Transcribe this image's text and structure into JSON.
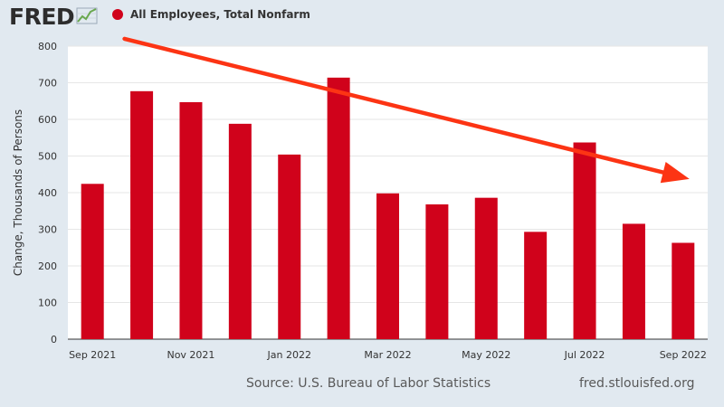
{
  "header": {
    "logo_text": "FRED",
    "legend_label": "All Employees, Total Nonfarm"
  },
  "colors": {
    "bar": "#d0021b",
    "arrow": "#fc3414",
    "plot_bg": "#ffffff",
    "page_bg": "#e1e9f0"
  },
  "icons": {
    "logo": "line-chart-icon"
  },
  "chart_data": {
    "type": "bar",
    "categories": [
      "Sep 2021",
      "Oct 2021",
      "Nov 2021",
      "Dec 2021",
      "Jan 2022",
      "Feb 2022",
      "Mar 2022",
      "Apr 2022",
      "May 2022",
      "Jun 2022",
      "Jul 2022",
      "Aug 2022",
      "Sep 2022"
    ],
    "tick_labels": [
      "Sep 2021",
      "Nov 2021",
      "Jan 2022",
      "Mar 2022",
      "May 2022",
      "Jul 2022",
      "Sep 2022"
    ],
    "series": [
      {
        "name": "All Employees, Total Nonfarm",
        "values": [
          424,
          677,
          647,
          588,
          504,
          714,
          398,
          368,
          386,
          293,
          537,
          315,
          263
        ]
      }
    ],
    "ylabel": "Change, Thousands of Persons",
    "xlabel": "",
    "ylim": [
      0,
      800
    ],
    "yticks": [
      0,
      100,
      200,
      300,
      400,
      500,
      600,
      700,
      800
    ],
    "grid": true,
    "legend_position": "top-left",
    "annotation": {
      "type": "arrow",
      "from": {
        "category": "Oct 2021",
        "value": 820
      },
      "to": {
        "category": "Sep 2022",
        "value": 430
      }
    }
  },
  "footer": {
    "source": "Source: U.S. Bureau of Labor Statistics",
    "url": "fred.stlouisfed.org"
  }
}
